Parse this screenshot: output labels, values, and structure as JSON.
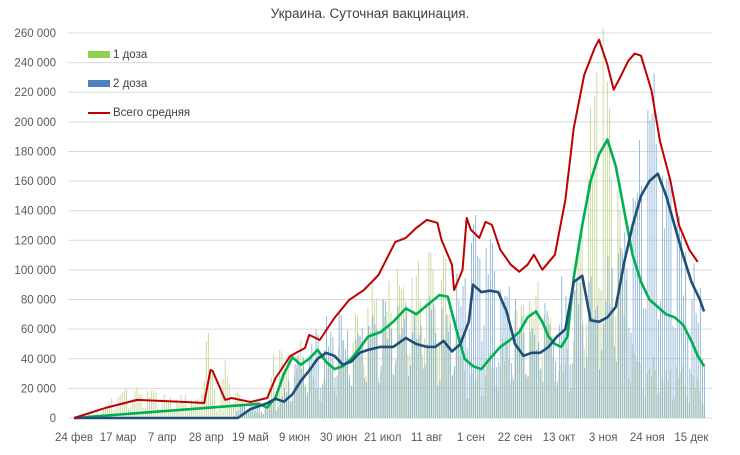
{
  "chart_data": {
    "type": "bar+line",
    "title": "Украина. Суточная вакцинация.",
    "xlabel": "",
    "ylabel": "",
    "ylim": [
      0,
      260000
    ],
    "yticks": [
      0,
      20000,
      40000,
      60000,
      80000,
      100000,
      120000,
      140000,
      160000,
      180000,
      200000,
      220000,
      240000,
      260000
    ],
    "ytick_labels": [
      "0",
      "20 000",
      "40 000",
      "60 000",
      "80 000",
      "100 000",
      "120 000",
      "140 000",
      "160 000",
      "180 000",
      "200 000",
      "220 000",
      "240 000",
      "260 000"
    ],
    "xtick_labels": [
      "24 фев",
      "17 мар",
      "7 апр",
      "28 апр",
      "19 май",
      "9 июн",
      "30 июн",
      "21 июл",
      "11 авг",
      "1 сен",
      "22 сен",
      "13 окт",
      "3 ноя",
      "24 ноя",
      "15 дек"
    ],
    "xtick_step_days": 21,
    "total_days": 300,
    "grid": true,
    "legend_position": "upper-left",
    "series": [
      {
        "name": "1 доза",
        "kind": "bar",
        "color": "#92d050",
        "bar_color": "#c4d79b",
        "key_points": [
          [
            0,
            1000
          ],
          [
            10,
            3000
          ],
          [
            16,
            8000
          ],
          [
            20,
            18000
          ],
          [
            28,
            17000
          ],
          [
            35,
            16000
          ],
          [
            42,
            15000
          ],
          [
            49,
            12000
          ],
          [
            55,
            15000
          ],
          [
            60,
            10000
          ],
          [
            62,
            70000
          ],
          [
            64,
            50000
          ],
          [
            68,
            10000
          ],
          [
            72,
            35000
          ],
          [
            76,
            25000
          ],
          [
            80,
            12000
          ],
          [
            84,
            5000
          ],
          [
            88,
            3000
          ],
          [
            92,
            10000
          ],
          [
            96,
            45000
          ],
          [
            100,
            40000
          ],
          [
            104,
            30000
          ],
          [
            108,
            45000
          ],
          [
            112,
            40000
          ],
          [
            116,
            20000
          ],
          [
            120,
            30000
          ],
          [
            126,
            40000
          ],
          [
            132,
            55000
          ],
          [
            138,
            65000
          ],
          [
            142,
            80000
          ],
          [
            148,
            70000
          ],
          [
            152,
            85000
          ],
          [
            158,
            90000
          ],
          [
            164,
            100000
          ],
          [
            170,
            95000
          ],
          [
            176,
            105000
          ],
          [
            180,
            80000
          ],
          [
            186,
            40000
          ],
          [
            190,
            25000
          ],
          [
            196,
            35000
          ],
          [
            202,
            45000
          ],
          [
            208,
            55000
          ],
          [
            214,
            65000
          ],
          [
            218,
            80000
          ],
          [
            222,
            95000
          ],
          [
            228,
            50000
          ],
          [
            232,
            40000
          ],
          [
            236,
            45000
          ],
          [
            240,
            90000
          ],
          [
            244,
            140000
          ],
          [
            248,
            200000
          ],
          [
            252,
            215000
          ],
          [
            256,
            175000
          ],
          [
            260,
            120000
          ],
          [
            264,
            60000
          ],
          [
            270,
            40000
          ],
          [
            276,
            35000
          ],
          [
            282,
            30000
          ],
          [
            290,
            28000
          ],
          [
            296,
            25000
          ],
          [
            300,
            20000
          ]
        ]
      },
      {
        "name": "2 доза",
        "kind": "bar",
        "color": "#4f81bd",
        "bar_color": "#8eb4d8",
        "key_points": [
          [
            0,
            0
          ],
          [
            74,
            0
          ],
          [
            76,
            3000
          ],
          [
            80,
            8000
          ],
          [
            86,
            10000
          ],
          [
            92,
            6000
          ],
          [
            98,
            15000
          ],
          [
            104,
            30000
          ],
          [
            110,
            45000
          ],
          [
            116,
            55000
          ],
          [
            122,
            65000
          ],
          [
            128,
            55000
          ],
          [
            134,
            50000
          ],
          [
            140,
            60000
          ],
          [
            146,
            65000
          ],
          [
            152,
            70000
          ],
          [
            158,
            75000
          ],
          [
            164,
            70000
          ],
          [
            170,
            65000
          ],
          [
            176,
            60000
          ],
          [
            182,
            80000
          ],
          [
            188,
            115000
          ],
          [
            192,
            125000
          ],
          [
            198,
            110000
          ],
          [
            204,
            85000
          ],
          [
            210,
            70000
          ],
          [
            216,
            55000
          ],
          [
            222,
            60000
          ],
          [
            228,
            70000
          ],
          [
            234,
            80000
          ],
          [
            240,
            85000
          ],
          [
            246,
            80000
          ],
          [
            252,
            85000
          ],
          [
            258,
            95000
          ],
          [
            262,
            110000
          ],
          [
            266,
            170000
          ],
          [
            270,
            195000
          ],
          [
            274,
            200000
          ],
          [
            278,
            180000
          ],
          [
            282,
            150000
          ],
          [
            286,
            120000
          ],
          [
            290,
            110000
          ],
          [
            294,
            90000
          ],
          [
            298,
            75000
          ],
          [
            300,
            80000
          ]
        ]
      },
      {
        "name": "Всего средняя",
        "kind": "line",
        "color": "#c00000",
        "points": [
          [
            0,
            0
          ],
          [
            15,
            6800
          ],
          [
            30,
            12200
          ],
          [
            53,
            10800
          ],
          [
            62,
            10100
          ],
          [
            65,
            32400
          ],
          [
            66,
            31800
          ],
          [
            72,
            12200
          ],
          [
            75,
            13500
          ],
          [
            84,
            10800
          ],
          [
            92,
            13500
          ],
          [
            96,
            27000
          ],
          [
            103,
            41900
          ],
          [
            110,
            47300
          ],
          [
            112,
            56100
          ],
          [
            117,
            52700
          ],
          [
            124,
            67500
          ],
          [
            131,
            79700
          ],
          [
            138,
            86400
          ],
          [
            145,
            96600
          ],
          [
            153,
            118900
          ],
          [
            158,
            121600
          ],
          [
            163,
            128400
          ],
          [
            168,
            133800
          ],
          [
            173,
            131800
          ],
          [
            175,
            120300
          ],
          [
            180,
            103500
          ],
          [
            181,
            86400
          ],
          [
            185,
            99900
          ],
          [
            187,
            135100
          ],
          [
            189,
            127000
          ],
          [
            193,
            121600
          ],
          [
            196,
            132400
          ],
          [
            199,
            130400
          ],
          [
            203,
            113600
          ],
          [
            208,
            103500
          ],
          [
            212,
            98800
          ],
          [
            216,
            103500
          ],
          [
            219,
            110300
          ],
          [
            223,
            100100
          ],
          [
            229,
            110300
          ],
          [
            234,
            147400
          ],
          [
            238,
            196000
          ],
          [
            243,
            231900
          ],
          [
            248,
            250100
          ],
          [
            250,
            255500
          ],
          [
            254,
            238600
          ],
          [
            257,
            221700
          ],
          [
            260,
            229800
          ],
          [
            264,
            241300
          ],
          [
            267,
            246100
          ],
          [
            270,
            244700
          ],
          [
            275,
            221100
          ],
          [
            279,
            187300
          ],
          [
            284,
            160300
          ],
          [
            288,
            130600
          ],
          [
            293,
            113600
          ],
          [
            297,
            105400
          ]
        ]
      },
      {
        "name": "1 доза средняя",
        "kind": "line",
        "color": "#00b050",
        "legend": false,
        "points": [
          [
            0,
            0
          ],
          [
            88,
            9500
          ],
          [
            92,
            7000
          ],
          [
            96,
            14000
          ],
          [
            100,
            30000
          ],
          [
            104,
            41000
          ],
          [
            108,
            36000
          ],
          [
            112,
            40000
          ],
          [
            116,
            46000
          ],
          [
            120,
            38000
          ],
          [
            124,
            33000
          ],
          [
            128,
            35000
          ],
          [
            132,
            40000
          ],
          [
            136,
            47000
          ],
          [
            140,
            55000
          ],
          [
            146,
            58000
          ],
          [
            152,
            65000
          ],
          [
            158,
            74000
          ],
          [
            163,
            70000
          ],
          [
            168,
            76000
          ],
          [
            174,
            83000
          ],
          [
            178,
            82000
          ],
          [
            182,
            60000
          ],
          [
            186,
            40000
          ],
          [
            190,
            35000
          ],
          [
            194,
            33000
          ],
          [
            198,
            40000
          ],
          [
            203,
            48000
          ],
          [
            207,
            52000
          ],
          [
            212,
            58000
          ],
          [
            216,
            68000
          ],
          [
            220,
            72000
          ],
          [
            223,
            65000
          ],
          [
            226,
            55000
          ],
          [
            229,
            50000
          ],
          [
            232,
            48000
          ],
          [
            235,
            55000
          ],
          [
            238,
            95000
          ],
          [
            242,
            130000
          ],
          [
            246,
            160000
          ],
          [
            250,
            178000
          ],
          [
            254,
            188000
          ],
          [
            258,
            170000
          ],
          [
            262,
            140000
          ],
          [
            266,
            110000
          ],
          [
            270,
            92000
          ],
          [
            274,
            80000
          ],
          [
            278,
            75000
          ],
          [
            282,
            70000
          ],
          [
            286,
            68000
          ],
          [
            290,
            63000
          ],
          [
            294,
            52000
          ],
          [
            297,
            42000
          ],
          [
            300,
            35000
          ]
        ]
      },
      {
        "name": "2 доза средняя",
        "kind": "line",
        "color": "#1f4e79",
        "legend": false,
        "points": [
          [
            0,
            0
          ],
          [
            40,
            0
          ],
          [
            78,
            0
          ],
          [
            84,
            6000
          ],
          [
            88,
            8000
          ],
          [
            92,
            10000
          ],
          [
            96,
            13000
          ],
          [
            100,
            11000
          ],
          [
            104,
            16000
          ],
          [
            108,
            25000
          ],
          [
            112,
            32000
          ],
          [
            116,
            40000
          ],
          [
            120,
            44000
          ],
          [
            124,
            42000
          ],
          [
            128,
            36000
          ],
          [
            132,
            38000
          ],
          [
            136,
            44000
          ],
          [
            140,
            46000
          ],
          [
            146,
            48000
          ],
          [
            152,
            48000
          ],
          [
            158,
            54000
          ],
          [
            163,
            50000
          ],
          [
            168,
            48000
          ],
          [
            172,
            48000
          ],
          [
            176,
            52000
          ],
          [
            180,
            45000
          ],
          [
            184,
            50000
          ],
          [
            188,
            65000
          ],
          [
            190,
            90000
          ],
          [
            194,
            85000
          ],
          [
            198,
            86000
          ],
          [
            202,
            85000
          ],
          [
            206,
            72000
          ],
          [
            210,
            50000
          ],
          [
            214,
            42000
          ],
          [
            218,
            44000
          ],
          [
            222,
            44000
          ],
          [
            226,
            48000
          ],
          [
            230,
            55000
          ],
          [
            234,
            60000
          ],
          [
            238,
            92000
          ],
          [
            242,
            96000
          ],
          [
            246,
            66000
          ],
          [
            250,
            65000
          ],
          [
            254,
            68000
          ],
          [
            258,
            75000
          ],
          [
            262,
            105000
          ],
          [
            266,
            130000
          ],
          [
            270,
            150000
          ],
          [
            274,
            160000
          ],
          [
            278,
            165000
          ],
          [
            282,
            150000
          ],
          [
            286,
            130000
          ],
          [
            290,
            110000
          ],
          [
            294,
            92000
          ],
          [
            298,
            80000
          ],
          [
            300,
            72000
          ]
        ]
      }
    ]
  },
  "legend": {
    "items": [
      {
        "label": "1 доза",
        "color": "#92d050",
        "type": "bar"
      },
      {
        "label": "2 доза",
        "color": "#4f81bd",
        "type": "bar"
      },
      {
        "label": "Всего средняя",
        "color": "#c00000",
        "type": "line"
      }
    ]
  }
}
